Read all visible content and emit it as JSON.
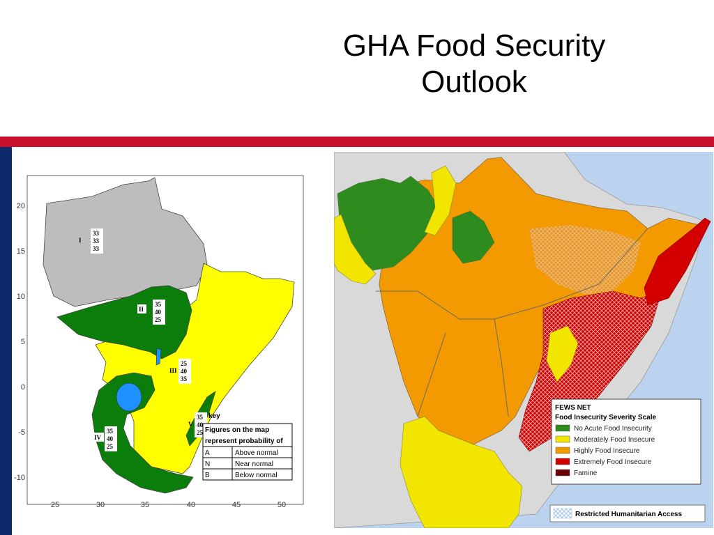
{
  "slide": {
    "title_line1": "GHA Food Security",
    "title_line2": "Outlook"
  },
  "forecast_map": {
    "x_ticks": [
      "25",
      "30",
      "35",
      "40",
      "45",
      "50"
    ],
    "y_ticks": [
      "20",
      "15",
      "10",
      "5",
      "0",
      "-5",
      "-10"
    ],
    "zones": [
      {
        "id": "I",
        "values": [
          "33",
          "33",
          "33"
        ]
      },
      {
        "id": "II",
        "values": [
          "35",
          "40",
          "25"
        ]
      },
      {
        "id": "III",
        "values": [
          "25",
          "40",
          "35"
        ]
      },
      {
        "id": "IV",
        "values": [
          "35",
          "40",
          "25"
        ]
      },
      {
        "id": "V",
        "values": [
          "35",
          "40",
          "25"
        ]
      }
    ],
    "key": {
      "label": "key",
      "heading_line1": "Figures on the map",
      "heading_line2": "represent probability of",
      "rows": [
        {
          "code": "A",
          "meaning": "Above normal"
        },
        {
          "code": "N",
          "meaning": "Near normal"
        },
        {
          "code": "B",
          "meaning": "Below normal"
        }
      ]
    },
    "colors": {
      "grey": "#bdbdbd",
      "green": "#0a7d0a",
      "yellow": "#ffff00",
      "lake": "#1e90ff"
    }
  },
  "fews_map": {
    "legend_title_line1": "FEWS NET",
    "legend_title_line2": "Food Insecurity Severity Scale",
    "legend_items": [
      {
        "label": "No Acute Food Insecurity",
        "color": "#2e8b1e"
      },
      {
        "label": "Moderately Food Insecure",
        "color": "#f2e600"
      },
      {
        "label": "Highly Food Insecure",
        "color": "#f29a00"
      },
      {
        "label": "Extremely Food Insecure",
        "color": "#d40000"
      },
      {
        "label": "Famine",
        "color": "#6b0000"
      }
    ],
    "restricted_label": "Restricted Humanitarian Access"
  }
}
